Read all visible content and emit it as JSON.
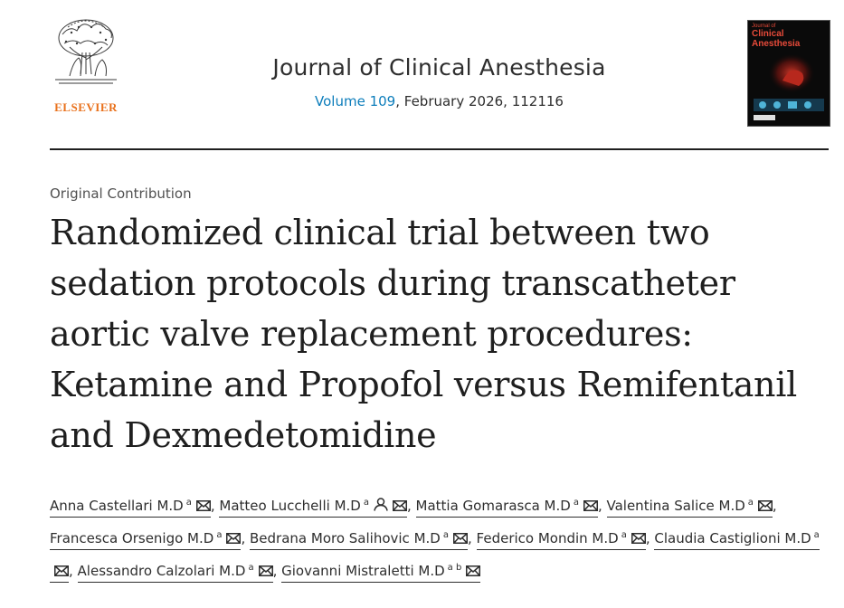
{
  "publisher": {
    "logo_text": "ELSEVIER",
    "brand_color": "#e9711c"
  },
  "journal": {
    "title": "Journal of Clinical Anesthesia",
    "volume_label": "Volume 109",
    "issue_rest": ", February 2026, 112116",
    "link_color": "#0c7dbb",
    "cover": {
      "line1": "Journal of",
      "line2": "Clinical Anesthesia",
      "accent_color": "#e84b3a"
    }
  },
  "article": {
    "type": "Original Contribution",
    "title": "Randomized clinical trial between two sedation protocols during transcatheter aortic valve replacement procedures: Ketamine and Propofol versus Remifentanil and Dexmedetomidine"
  },
  "authors": [
    {
      "name": "Anna Castellari M.D",
      "aff": "a",
      "icons": [
        "mail-icon"
      ]
    },
    {
      "name": "Matteo Lucchelli M.D",
      "aff": "a",
      "icons": [
        "person-icon",
        "mail-icon"
      ]
    },
    {
      "name": "Mattia Gomarasca M.D",
      "aff": "a",
      "icons": [
        "mail-icon"
      ]
    },
    {
      "name": "Valentina Salice M.D",
      "aff": "a",
      "icons": [
        "mail-icon"
      ]
    },
    {
      "name": "Francesca Orsenigo M.D",
      "aff": "a",
      "icons": [
        "mail-icon"
      ]
    },
    {
      "name": "Bedrana Moro Salihovic M.D",
      "aff": "a",
      "icons": [
        "mail-icon"
      ]
    },
    {
      "name": "Federico Mondin M.D",
      "aff": "a",
      "icons": [
        "mail-icon"
      ]
    },
    {
      "name": "Claudia Castiglioni M.D",
      "aff": "a",
      "icons": [
        "mail-icon"
      ]
    },
    {
      "name": "Alessandro Calzolari M.D",
      "aff": "a",
      "icons": [
        "mail-icon"
      ]
    },
    {
      "name": "Giovanni Mistraletti M.D",
      "aff": "a b",
      "icons": [
        "mail-icon"
      ]
    }
  ]
}
